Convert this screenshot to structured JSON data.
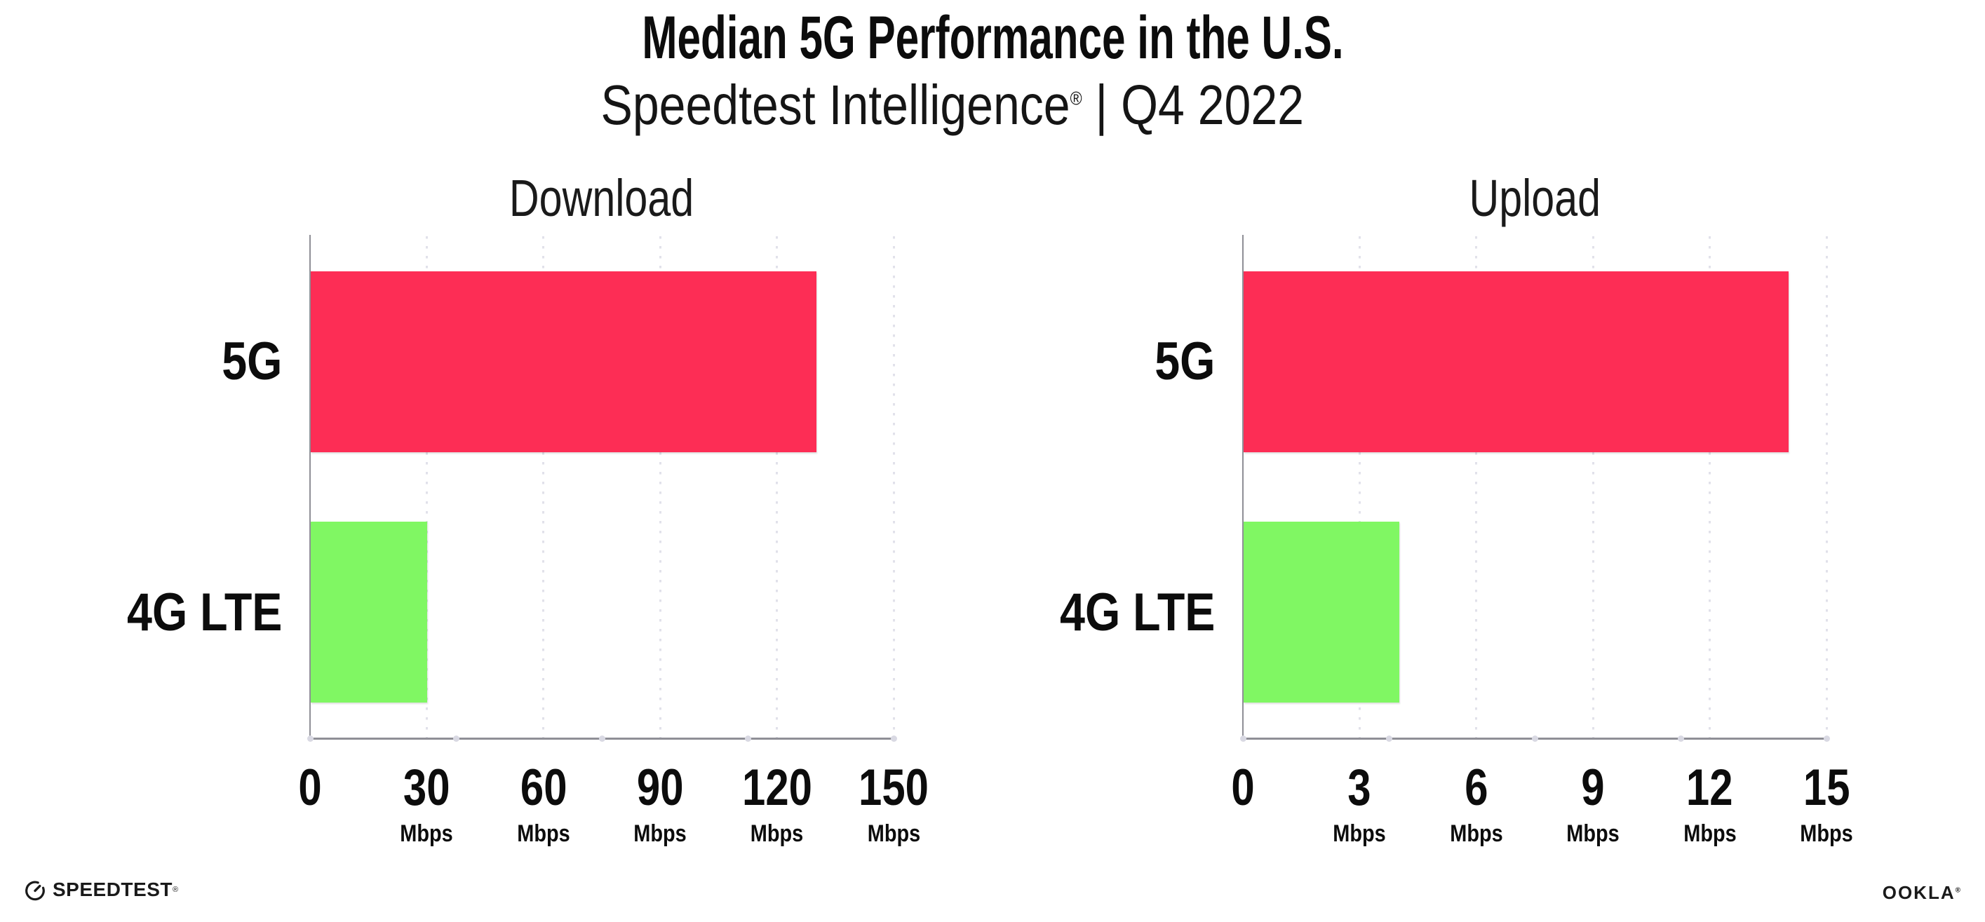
{
  "header": {
    "title": "Median 5G Performance in the U.S.",
    "subtitle_brand": "Speedtest Intelligence",
    "subtitle_mark": "®",
    "subtitle_rest": " | Q4 2022"
  },
  "chart_data": [
    {
      "type": "bar",
      "orientation": "horizontal",
      "title": "Download",
      "categories": [
        "5G",
        "4G LTE"
      ],
      "values": [
        130,
        30
      ],
      "unit": "Mbps",
      "xlim": [
        0,
        150
      ],
      "xticks": [
        0,
        30,
        60,
        90,
        120,
        150
      ],
      "xtick_unit": "Mbps",
      "bar_colors": [
        "#FD2D55",
        "#80F763"
      ],
      "grid": "dotted-vertical",
      "legend": "none"
    },
    {
      "type": "bar",
      "orientation": "horizontal",
      "title": "Upload",
      "categories": [
        "5G",
        "4G LTE"
      ],
      "values": [
        14,
        4
      ],
      "unit": "Mbps",
      "xlim": [
        0,
        15
      ],
      "xticks": [
        0,
        3,
        6,
        9,
        12,
        15
      ],
      "xtick_unit": "Mbps",
      "bar_colors": [
        "#FD2D55",
        "#80F763"
      ],
      "grid": "dotted-vertical",
      "legend": "none"
    }
  ],
  "footer": {
    "speedtest_label": "SPEEDTEST",
    "speedtest_mark": "®",
    "ookla_label": "OOKLA",
    "ookla_mark": "®"
  },
  "colors": {
    "bar_5g": "#FD2D55",
    "bar_4g_lte": "#80F763",
    "axis": "#8F8F96",
    "gridline": "#E1E1EA",
    "text": "#0C0C0C"
  }
}
